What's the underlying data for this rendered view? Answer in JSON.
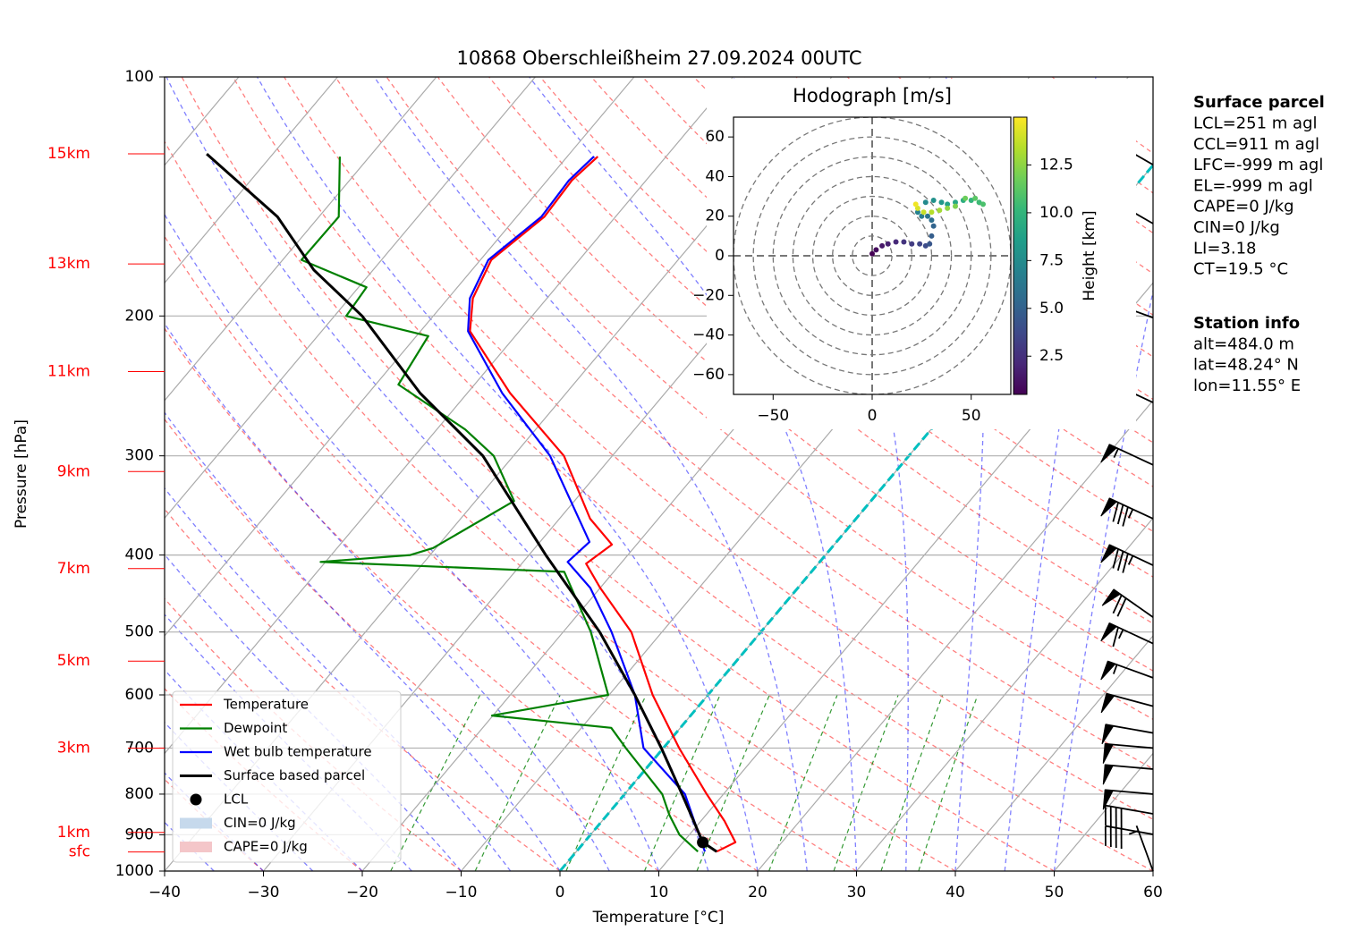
{
  "chart_data": {
    "type": "skewt",
    "title": "10868 Oberschleißheim 27.09.2024 00UTC",
    "x_label": "Temperature [°C]",
    "y_label": "Pressure [hPa]",
    "xlim": [
      -40,
      60
    ],
    "xticks": [
      {
        "value": -40,
        "label": "−40"
      },
      {
        "value": -30,
        "label": "−30"
      },
      {
        "value": -20,
        "label": "−20"
      },
      {
        "value": -10,
        "label": "−10"
      },
      0,
      10,
      20,
      30,
      40,
      50,
      60
    ],
    "ylim": [
      1000,
      100
    ],
    "log_y": true,
    "yticks": [
      100,
      200,
      300,
      400,
      500,
      600,
      700,
      800,
      900,
      1000
    ],
    "grid": true,
    "highlight_isotherm": 0,
    "height_ticks": [
      {
        "value": 125,
        "label": "15km"
      },
      {
        "value": 172,
        "label": "13km"
      },
      {
        "value": 235,
        "label": "11km"
      },
      {
        "value": 314,
        "label": "9km"
      },
      {
        "value": 416,
        "label": "7km"
      },
      {
        "value": 544,
        "label": "5km"
      },
      {
        "value": 700,
        "label": "3km"
      },
      {
        "value": 894,
        "label": "1km"
      },
      {
        "value": 946,
        "label": "sfc"
      }
    ],
    "legend": "lower left",
    "series": [
      {
        "name": "Temperature",
        "color": "#ff0000",
        "pressure": [
          945,
          920,
          865,
          800,
          700,
          600,
          500,
          440,
          410,
          388,
          360,
          300,
          250,
          209,
          190,
          170,
          150,
          135,
          126
        ],
        "values": [
          14.2,
          15.3,
          12.4,
          8.3,
          1.6,
          -5.6,
          -13.1,
          -20.0,
          -23.5,
          -22.5,
          -26.9,
          -34.9,
          -45.7,
          -55.0,
          -57.5,
          -58.9,
          -57.2,
          -57.5,
          -56.9
        ]
      },
      {
        "name": "Dewpoint",
        "color": "#008000",
        "pressure": [
          945,
          900,
          850,
          800,
          700,
          660,
          637,
          600,
          500,
          420,
          408,
          400,
          392,
          342,
          300,
          278,
          244,
          212,
          200,
          184,
          170,
          150,
          126
        ],
        "values": [
          12.3,
          9.0,
          6.3,
          3.8,
          -3.8,
          -7.0,
          -20.1,
          -10.1,
          -17.2,
          -25.0,
          -50.5,
          -42.0,
          -40.3,
          -36.1,
          -42.0,
          -47.1,
          -57.7,
          -58.8,
          -68.8,
          -69.2,
          -78.1,
          -78.0,
          -83.0
        ]
      },
      {
        "name": "Wet bulb temperature",
        "color": "#0000ff",
        "pressure": [
          945,
          800,
          700,
          600,
          500,
          440,
          408,
          385,
          300,
          250,
          209,
          190,
          170,
          150,
          135,
          126
        ],
        "values": [
          13.0,
          6.1,
          -2.0,
          -7.4,
          -15.1,
          -21.0,
          -25.5,
          -25.0,
          -36.3,
          -46.5,
          -55.2,
          -57.8,
          -59.2,
          -57.5,
          -57.8,
          -57.3
        ]
      },
      {
        "name": "Surface based parcel",
        "color": "#000000",
        "pressure": [
          945,
          920,
          850,
          800,
          700,
          600,
          500,
          400,
          300,
          250,
          200,
          175,
          150,
          125
        ],
        "values": [
          14.2,
          12.0,
          8.5,
          5.8,
          -0.2,
          -7.4,
          -16.3,
          -28.3,
          -43.1,
          -54.8,
          -67.2,
          -76.0,
          -84.2,
          -96.7
        ]
      }
    ],
    "lcl": {
      "label": "LCL",
      "pressure": 920,
      "values": 12.0,
      "color": "#000000"
    },
    "shading": [
      {
        "label": "CIN=0 J/kg",
        "color": "#c6d9ec"
      },
      {
        "label": "CAPE=0 J/kg",
        "color": "#f4c6c9"
      }
    ],
    "wind": {
      "pressure": [
        129,
        153,
        201,
        257,
        308,
        360,
        412,
        479,
        517,
        571,
        620,
        670,
        700,
        744,
        800,
        847,
        899,
        1000
      ],
      "speed": [
        65,
        70,
        85,
        60,
        55,
        85,
        85,
        70,
        65,
        55,
        50,
        50,
        50,
        50,
        50,
        40,
        40,
        5
      ],
      "direction": [
        240,
        240,
        250,
        245,
        245,
        245,
        245,
        235,
        245,
        250,
        255,
        260,
        265,
        265,
        265,
        260,
        260,
        200
      ]
    },
    "hodograph": {
      "type": "hodograph",
      "title": "Hodograph [m/s]",
      "xlim": [
        -70,
        70
      ],
      "ylim": [
        -70,
        70
      ],
      "xticks": [
        {
          "value": -50,
          "label": "−50"
        },
        0,
        50
      ],
      "yticks": [
        {
          "value": -60,
          "label": "−60"
        },
        {
          "value": -40,
          "label": "−40"
        },
        {
          "value": -20,
          "label": "−20"
        },
        0,
        20,
        40,
        60
      ],
      "rings": [
        10,
        20,
        30,
        40,
        50,
        60,
        70
      ],
      "u": [
        0,
        2,
        5,
        8,
        12,
        16,
        20,
        24,
        27,
        29,
        30,
        31,
        30,
        28,
        25,
        23,
        27,
        31,
        35,
        38,
        42,
        46,
        50,
        54,
        56,
        52,
        47,
        42,
        38,
        34,
        30,
        26,
        23,
        22
      ],
      "v": [
        1,
        3,
        5,
        6,
        7,
        7,
        6,
        6,
        5,
        6,
        10,
        15,
        18,
        20,
        20,
        22,
        27,
        28,
        27,
        26,
        27,
        28,
        28,
        27,
        26,
        29,
        29,
        25,
        24,
        23,
        22,
        22,
        24,
        26
      ],
      "height": [
        0.5,
        0.9,
        1.4,
        1.8,
        2.2,
        2.7,
        3.1,
        3.5,
        3.9,
        4.4,
        4.8,
        5.2,
        5.7,
        6.1,
        6.5,
        6.9,
        7.4,
        7.8,
        8.2,
        8.7,
        9.1,
        9.5,
        10.0,
        10.4,
        10.8,
        11.2,
        11.7,
        12.1,
        12.5,
        13.0,
        13.4,
        13.8,
        14.2,
        14.7
      ],
      "colorbar": {
        "label": "Height [km]",
        "clim": [
          0.5,
          15.0
        ],
        "ticks": [
          2.5,
          {
            "value": 5.0,
            "label": "5.0"
          },
          7.5,
          {
            "value": 10.0,
            "label": "10.0"
          },
          12.5
        ]
      }
    },
    "info": [
      {
        "title": "Surface parcel",
        "lines": [
          "LCL=251 m agl",
          "CCL=911 m agl",
          "LFC=-999 m agl",
          "EL=-999 m agl",
          "CAPE=0 J/kg",
          "CIN=0 J/kg",
          "LI=3.18",
          "CT=19.5 °C"
        ]
      },
      {
        "title": "Station info",
        "lines": [
          "alt=484.0 m",
          "lat=48.24° N",
          "lon=11.55° E"
        ]
      }
    ]
  }
}
